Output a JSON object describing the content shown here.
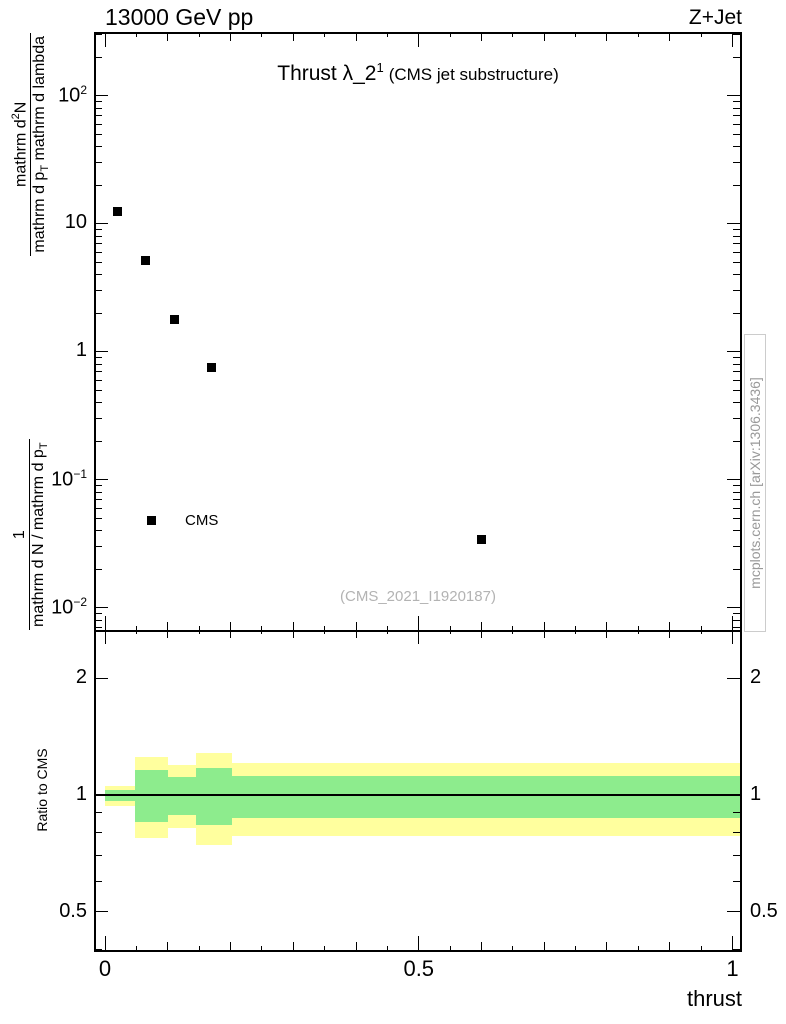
{
  "header": {
    "left": "13000 GeV pp",
    "right": "Z+Jet"
  },
  "plot": {
    "title": {
      "main": "Thrust λ_2",
      "sup": "1",
      "paren": "(CMS jet substructure)"
    },
    "legend_label": "CMS",
    "watermark": "(CMS_2021_I1920187)",
    "side_note": "mcplots.cern.ch [arXiv:1306.3436]",
    "xlabel": "thrust",
    "ratio_ylabel": "Ratio to CMS",
    "ylabel": {
      "outer_num": "1",
      "outer_den_main": "mathrm d N / mathrm d p",
      "outer_den_sub": "T",
      "inner_num_main": "mathrm d",
      "inner_num_sup": "2",
      "inner_num_tail": "N",
      "inner_den_main": "mathrm d p",
      "inner_den_sub": "T",
      "inner_den_tail": " mathrm d lambda"
    }
  },
  "chart_data": {
    "type": "scatter",
    "title": "Thrust λ_2^1 (CMS jet substructure)",
    "xlabel": "thrust",
    "ylabel": "1/(dN/dp_T) d²N/(dp_T dλ)",
    "legend_position": "mid-left",
    "grid": false,
    "x_axis": {
      "lim": [
        -0.016,
        1.012
      ],
      "major_ticks": [
        {
          "v": 0,
          "label": "0"
        },
        {
          "v": 0.5,
          "label": "0.5"
        },
        {
          "v": 1,
          "label": "1"
        }
      ],
      "mid_tick_step": 0.1,
      "minor_tick_step": 0.05
    },
    "main_axis": {
      "scale": "log",
      "lim": [
        0.0067,
        310
      ],
      "major_ticks": [
        {
          "v": 100,
          "base": "10",
          "exp": "2"
        },
        {
          "v": 10,
          "base": "10",
          "exp": ""
        },
        {
          "v": 1,
          "base": "1",
          "exp": ""
        },
        {
          "v": 0.1,
          "base": "10",
          "exp": "−1"
        },
        {
          "v": 0.01,
          "base": "10",
          "exp": "−2"
        }
      ]
    },
    "ratio_axis": {
      "scale": "log",
      "lim": [
        0.399,
        2.66
      ],
      "major_ticks": [
        {
          "v": 2,
          "label": "2"
        },
        {
          "v": 1,
          "label": "1"
        },
        {
          "v": 0.5,
          "label": "0.5"
        }
      ],
      "minor_ticks": [
        0.4,
        0.6,
        0.7,
        0.8,
        0.9
      ]
    },
    "series": [
      {
        "name": "CMS",
        "marker": "square",
        "color": "#000000",
        "points": [
          {
            "x": 0.02,
            "y": 12.5
          },
          {
            "x": 0.065,
            "y": 5.2
          },
          {
            "x": 0.11,
            "y": 1.8
          },
          {
            "x": 0.17,
            "y": 0.75
          },
          {
            "x": 0.6,
            "y": 0.034
          }
        ]
      }
    ],
    "ratio": {
      "reference_line": 1.0,
      "colors": {
        "outer": "#ffff9e",
        "inner": "#8dec8d"
      },
      "bands": [
        {
          "x0": 0.0,
          "x1": 0.048,
          "outer": [
            0.937,
            1.055
          ],
          "inner": [
            0.965,
            1.03
          ]
        },
        {
          "x0": 0.048,
          "x1": 0.1,
          "outer": [
            0.775,
            1.252
          ],
          "inner": [
            0.852,
            1.16
          ]
        },
        {
          "x0": 0.1,
          "x1": 0.145,
          "outer": [
            0.822,
            1.194
          ],
          "inner": [
            0.888,
            1.113
          ]
        },
        {
          "x0": 0.145,
          "x1": 0.202,
          "outer": [
            0.743,
            1.283
          ],
          "inner": [
            0.837,
            1.174
          ]
        },
        {
          "x0": 0.202,
          "x1": 1.012,
          "outer": [
            0.784,
            1.209
          ],
          "inner": [
            0.873,
            1.119
          ]
        }
      ]
    }
  }
}
